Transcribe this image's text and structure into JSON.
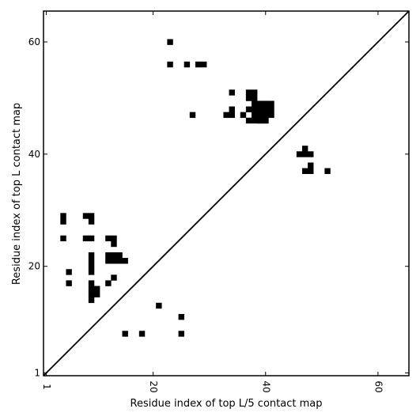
{
  "chart_data": {
    "type": "heatmap",
    "title": "",
    "xlabel": "Residue index of top L/5 contact map",
    "ylabel": "Residue index of top L contact map",
    "xlim": [
      0.5,
      65.5
    ],
    "ylim": [
      0.5,
      65.5
    ],
    "x_ticks": [
      1,
      20,
      40,
      60
    ],
    "y_ticks": [
      1,
      20,
      40,
      60
    ],
    "x_tick_rotation": "vertical",
    "diagonal_line": true,
    "grid": false,
    "legend": "none",
    "cell_color": "#000000",
    "upper_triangle_cells": [
      [
        23,
        60
      ],
      [
        23,
        56
      ],
      [
        26,
        56
      ],
      [
        28,
        56
      ],
      [
        29,
        56
      ],
      [
        27,
        47
      ],
      [
        34,
        51
      ],
      [
        34,
        48
      ],
      [
        33,
        47
      ],
      [
        34,
        47
      ],
      [
        36,
        47
      ],
      [
        37,
        51
      ],
      [
        38,
        51
      ],
      [
        37,
        50
      ],
      [
        38,
        50
      ],
      [
        37,
        48
      ],
      [
        38,
        48
      ],
      [
        37,
        46
      ],
      [
        38,
        46
      ],
      [
        39,
        46
      ],
      [
        40,
        46
      ],
      [
        47,
        41
      ],
      [
        46,
        40
      ],
      [
        47,
        40
      ],
      [
        48,
        40
      ],
      [
        48,
        38
      ],
      [
        47,
        37
      ],
      [
        48,
        37
      ],
      [
        51,
        37
      ]
    ],
    "upper_triangle_blocks": [
      {
        "x": [
          38,
          41
        ],
        "y": [
          47,
          49
        ]
      },
      {
        "x": [
          39,
          40
        ],
        "y": [
          46,
          49
        ]
      }
    ],
    "lower_triangle_cells": [
      [
        4,
        29
      ],
      [
        4,
        28
      ],
      [
        8,
        29
      ],
      [
        9,
        29
      ],
      [
        9,
        28
      ],
      [
        4,
        25
      ],
      [
        8,
        25
      ],
      [
        9,
        25
      ],
      [
        12,
        25
      ],
      [
        13,
        25
      ],
      [
        13,
        24
      ],
      [
        9,
        22
      ],
      [
        9,
        21
      ],
      [
        9,
        20
      ],
      [
        9,
        19
      ],
      [
        12,
        22
      ],
      [
        13,
        22
      ],
      [
        14,
        22
      ],
      [
        12,
        21
      ],
      [
        13,
        21
      ],
      [
        14,
        21
      ],
      [
        15,
        21
      ],
      [
        5,
        19
      ],
      [
        5,
        17
      ],
      [
        13,
        18
      ],
      [
        12,
        17
      ],
      [
        9,
        17
      ],
      [
        9,
        16
      ],
      [
        9,
        15
      ],
      [
        9,
        14
      ],
      [
        10,
        16
      ],
      [
        10,
        15
      ],
      [
        21,
        13
      ],
      [
        25,
        11
      ],
      [
        15,
        8
      ],
      [
        18,
        8
      ],
      [
        25,
        8
      ]
    ]
  }
}
